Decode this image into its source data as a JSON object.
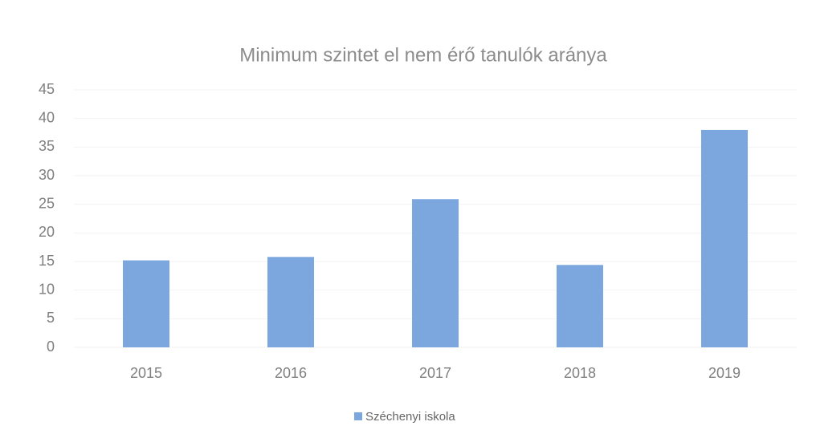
{
  "chart_data": {
    "type": "bar",
    "title": "Minimum szintet el nem érő tanulók aránya",
    "categories": [
      "2015",
      "2016",
      "2017",
      "2018",
      "2019"
    ],
    "series": [
      {
        "name": "Széchenyi iskola",
        "color": "#7ba7de",
        "values": [
          15.2,
          15.8,
          25.9,
          14.4,
          38
        ]
      }
    ],
    "ylim": [
      0,
      45
    ],
    "yticks": [
      0,
      5,
      10,
      15,
      20,
      25,
      30,
      35,
      40,
      45
    ],
    "grid": true,
    "legend": "bottom"
  }
}
